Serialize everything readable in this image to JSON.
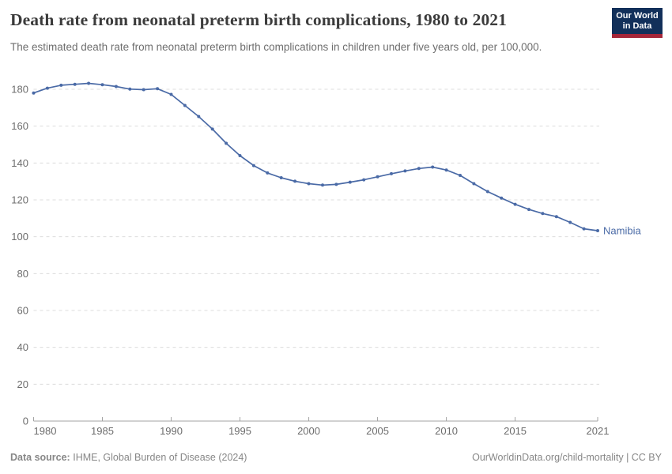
{
  "header": {
    "title": "Death rate from neonatal preterm birth complications, 1980 to 2021",
    "subtitle": "The estimated death rate from neonatal preterm birth complications in children under five years old, per 100,000.",
    "logo": {
      "line1": "Our World",
      "line2": "in Data",
      "bg_color": "#12305a",
      "accent_color": "#a52639"
    }
  },
  "chart_data": {
    "type": "line",
    "title": "Death rate from neonatal preterm birth complications, 1980 to 2021",
    "xlabel": "",
    "ylabel": "",
    "ylim": [
      0,
      180
    ],
    "yticks": [
      0,
      20,
      40,
      60,
      80,
      100,
      120,
      140,
      160,
      180
    ],
    "xticks": [
      1980,
      1985,
      1990,
      1995,
      2000,
      2005,
      2010,
      2015,
      2021
    ],
    "grid": "horizontal-dashed",
    "legend_position": "end-of-line-label",
    "x": [
      1980,
      1981,
      1982,
      1983,
      1984,
      1985,
      1986,
      1987,
      1988,
      1989,
      1990,
      1991,
      1992,
      1993,
      1994,
      1995,
      1996,
      1997,
      1998,
      1999,
      2000,
      2001,
      2002,
      2003,
      2004,
      2005,
      2006,
      2007,
      2008,
      2009,
      2010,
      2011,
      2012,
      2013,
      2014,
      2015,
      2016,
      2017,
      2018,
      2019,
      2020,
      2021
    ],
    "series": [
      {
        "name": "Namibia",
        "color": "#4a6aa6",
        "values": [
          178.0,
          180.6,
          182.2,
          182.7,
          183.2,
          182.5,
          181.5,
          180.1,
          179.8,
          180.3,
          177.2,
          171.2,
          165.2,
          158.4,
          150.7,
          144.0,
          138.6,
          134.6,
          132.0,
          130.1,
          128.8,
          128.0,
          128.4,
          129.6,
          130.9,
          132.5,
          134.2,
          135.7,
          137.0,
          137.8,
          136.2,
          133.3,
          128.8,
          124.5,
          121.0,
          117.6,
          114.8,
          112.6,
          110.9,
          107.8,
          104.3,
          103.3
        ]
      }
    ]
  },
  "footer": {
    "datasource_label": "Data source:",
    "datasource_text": "IHME, Global Burden of Disease (2024)",
    "credit": "OurWorldinData.org/child-mortality | CC BY"
  }
}
